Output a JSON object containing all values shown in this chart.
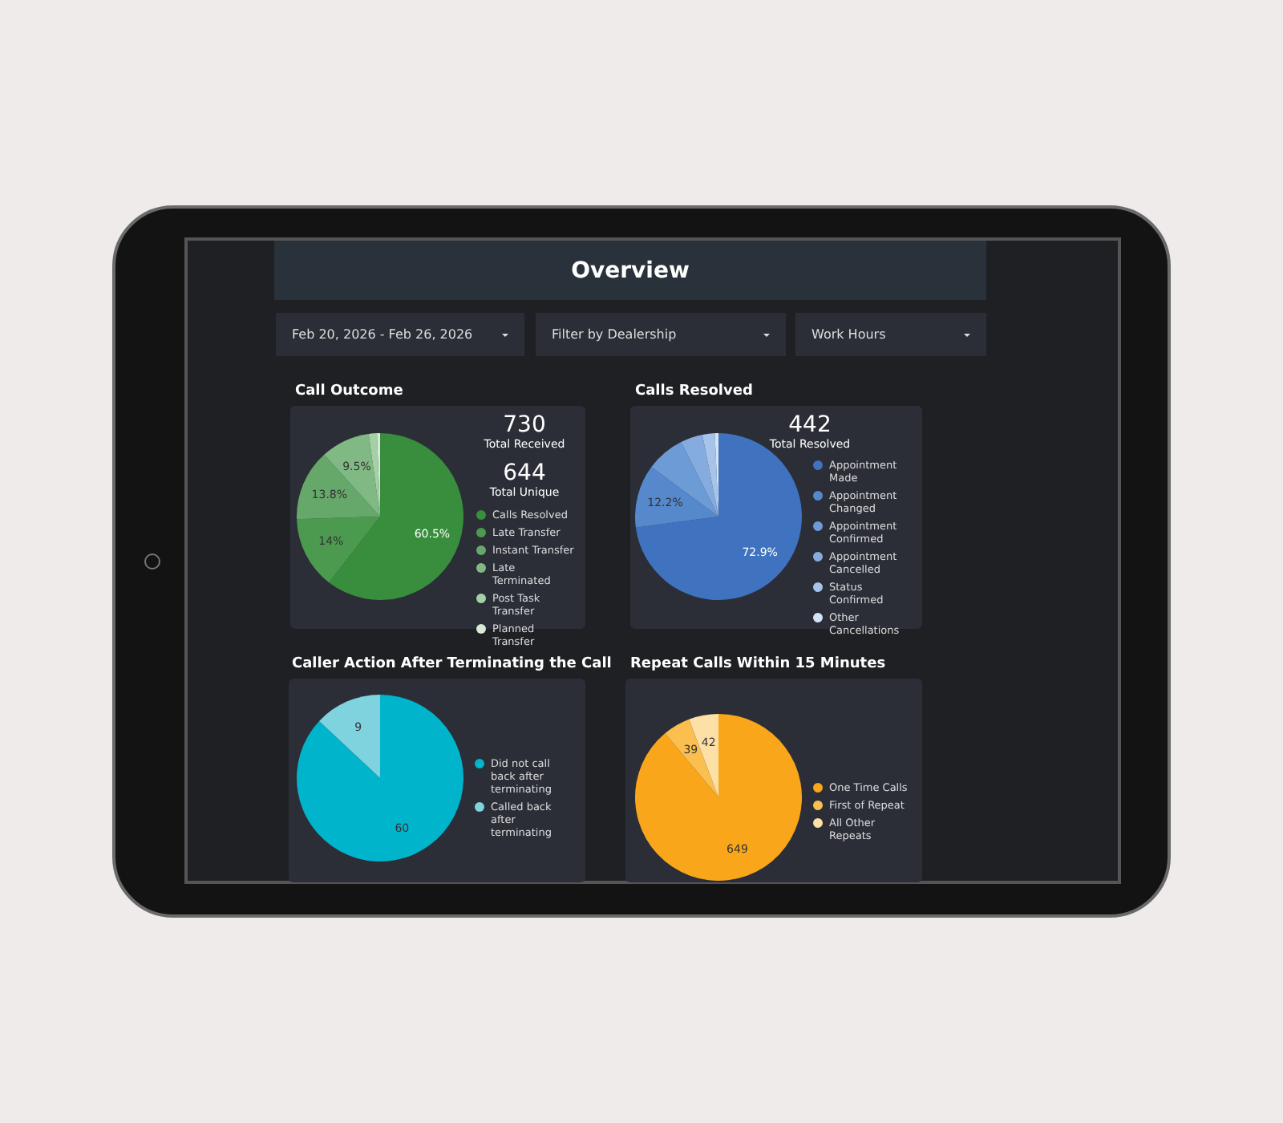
{
  "chart_data": [
    {
      "type": "other",
      "title": "Overview",
      "annotations": [
        "Feb 20, 2026 - Feb 26, 2026",
        "Filter by Dealership",
        "Work Hours"
      ]
    },
    {
      "type": "pie",
      "title": "Call Outcome",
      "categories": [
        "Calls Resolved",
        "Late Transfer",
        "Instant Transfer",
        "Late Terminated",
        "Post Task Transfer",
        "Planned Transfer"
      ],
      "values": [
        60.5,
        14,
        13.8,
        9.5,
        1.6,
        0.6
      ],
      "colors": [
        "#388e3c",
        "#4c9a50",
        "#66a86a",
        "#81b985",
        "#a5cfa7",
        "#d6ead6"
      ],
      "value_labels": [
        "60.5%",
        "14%",
        "13.8%",
        "9.5%",
        null,
        null
      ],
      "legend": "right",
      "annotations": [
        "730",
        "Total Received",
        "644",
        "Total Unique"
      ]
    },
    {
      "type": "pie",
      "title": "Calls Resolved",
      "categories": [
        "Appointment Made",
        "Appointment Changed",
        "Appointment Confirmed",
        "Appointment Cancelled",
        "Status Confirmed",
        "Other Cancellations"
      ],
      "values": [
        72.9,
        12.2,
        7.5,
        4.3,
        2.4,
        0.7
      ],
      "colors": [
        "#3f73bf",
        "#5688cc",
        "#6d9bd6",
        "#86acdf",
        "#a6c4ea",
        "#d4e3f6"
      ],
      "value_labels": [
        "72.9%",
        "12.2%",
        null,
        null,
        null,
        null
      ],
      "legend": "right",
      "annotations": [
        "442",
        "Total Resolved"
      ]
    },
    {
      "type": "pie",
      "title": "Caller Action After Terminating the Call",
      "categories": [
        "Did not call back after terminating",
        "Called back after terminating"
      ],
      "values": [
        60,
        9
      ],
      "colors": [
        "#00b4cc",
        "#7fd3df"
      ],
      "data_labels": true,
      "legend": "right"
    },
    {
      "type": "pie",
      "title": "Repeat Calls Within 15 Minutes",
      "categories": [
        "One Time Calls",
        "First of Repeat",
        "All Other Repeats"
      ],
      "values": [
        649,
        39,
        42
      ],
      "colors": [
        "#f9a61b",
        "#fbbf4f",
        "#fde0a6"
      ],
      "data_labels": true,
      "legend": "right"
    }
  ]
}
